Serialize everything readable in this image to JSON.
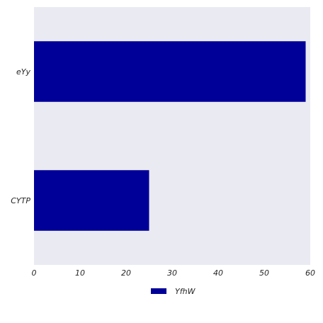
{
  "chart_data": {
    "type": "bar",
    "orientation": "horizontal",
    "categories": [
      "eYy",
      "CYTP"
    ],
    "series": [
      {
        "name": "YfhW",
        "values": [
          59,
          25
        ],
        "color": "#000099"
      }
    ],
    "xlim": [
      0,
      60
    ],
    "xticks": [
      "0",
      "10",
      "20",
      "30",
      "40",
      "50",
      "60"
    ],
    "title": "",
    "xlabel": "",
    "ylabel": "",
    "grid": false,
    "legend": "bottom-center",
    "background": "#eaeaf2"
  }
}
